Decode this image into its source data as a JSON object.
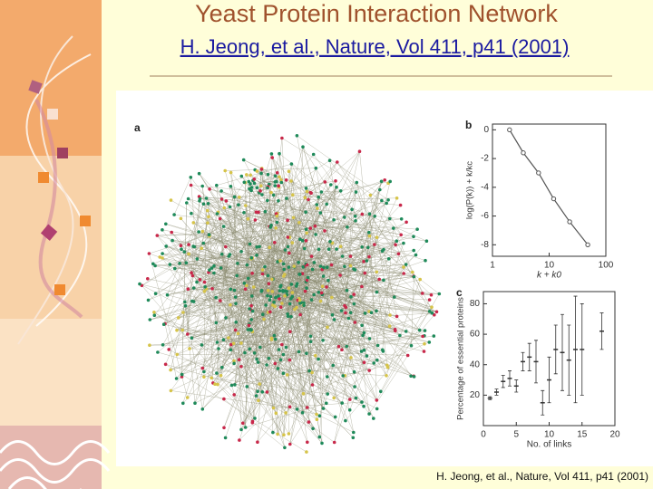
{
  "header": {
    "title": "Yeast Protein Interaction Network",
    "subtitle": "H. Jeong, et al., Nature, Vol 411, p41 (2001)"
  },
  "figure": {
    "network_label": "a"
  },
  "chart_data": [
    {
      "type": "line",
      "label": "b",
      "x_label": "k + k0",
      "y_label": "log(P(k)) + k/kc",
      "x": [
        2,
        3.5,
        6.5,
        12,
        23,
        48
      ],
      "values": [
        0,
        -1.6,
        -3.0,
        -4.8,
        -6.4,
        -8.0
      ],
      "log_x": true,
      "xlim": [
        1,
        100
      ],
      "xticks": [
        1,
        10,
        100
      ],
      "ylim": [
        -8.8,
        0.4
      ],
      "yticks": [
        0,
        -2,
        -4,
        -6,
        -8
      ],
      "color": "#555555"
    },
    {
      "type": "errorbar",
      "label": "c",
      "x_label": "No. of links",
      "y_label": "Percentage of essential proteins",
      "x": [
        1,
        2,
        3,
        4,
        5,
        6,
        7,
        8,
        9,
        10,
        11,
        12,
        13,
        14,
        15,
        18
      ],
      "values": [
        18,
        22,
        29,
        31,
        26,
        42,
        45,
        42,
        15,
        30,
        50,
        48,
        43,
        50,
        50,
        62
      ],
      "errors": [
        1,
        2,
        4,
        5,
        4,
        6,
        9,
        14,
        8,
        15,
        16,
        25,
        23,
        35,
        30,
        12
      ],
      "xlim": [
        0,
        20
      ],
      "xticks": [
        0,
        5,
        10,
        15,
        20
      ],
      "ylim": [
        0,
        88
      ],
      "yticks": [
        20,
        40,
        60,
        80
      ],
      "color": "#333333"
    }
  ],
  "caption": "H. Jeong, et al., Nature, Vol 411, p41 (2001)"
}
